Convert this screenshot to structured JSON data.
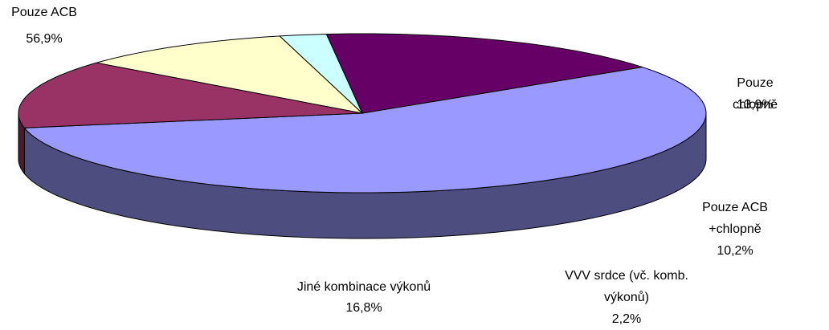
{
  "chart_data": {
    "type": "pie3d",
    "categories": [
      "Pouze ACB",
      "Pouze chlopně",
      "Pouze ACB\n+chlopně",
      "VVV srdce (vč. komb.\nvýkonů)",
      "Jiné kombinace výkonů"
    ],
    "values": [
      56.9,
      13.9,
      10.2,
      2.2,
      16.8
    ],
    "value_labels": [
      "56,9%",
      "13,9%",
      "10,2%",
      "2,2%",
      "16,8%"
    ],
    "colors": [
      "#9999ff",
      "#993366",
      "#ffffcc",
      "#ccffff",
      "#660066"
    ]
  }
}
